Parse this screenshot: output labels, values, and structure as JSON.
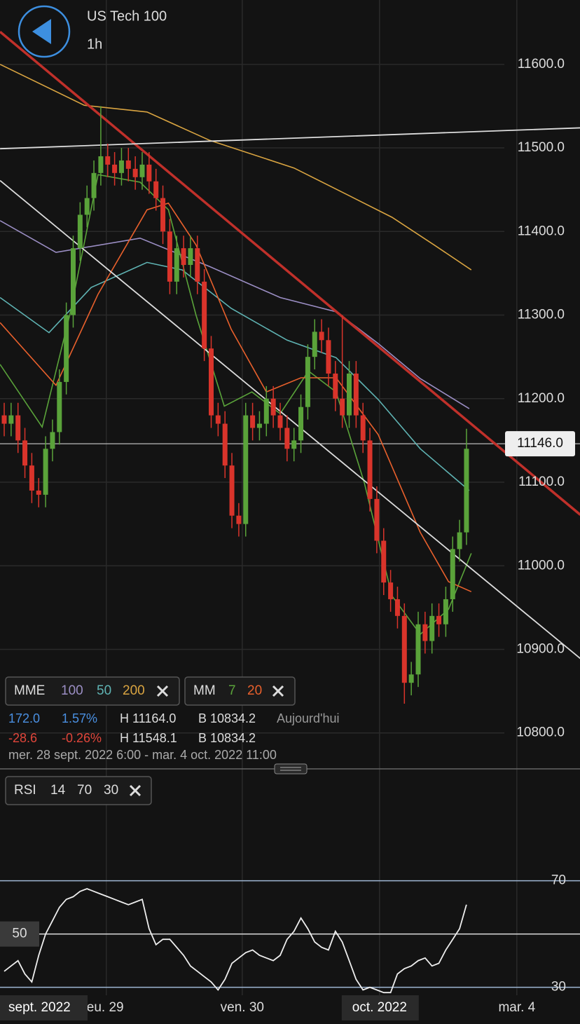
{
  "header": {
    "title": "US Tech 100",
    "interval": "1h"
  },
  "indicator_boxes": [
    {
      "name": "MME",
      "params": [
        {
          "text": "100",
          "color": "#9b8ec4"
        },
        {
          "text": "50",
          "color": "#5fb3b3"
        },
        {
          "text": "200",
          "color": "#d9a441"
        }
      ]
    },
    {
      "name": "MM",
      "params": [
        {
          "text": "7",
          "color": "#5aa33a"
        },
        {
          "text": "20",
          "color": "#e8602c"
        }
      ]
    },
    {
      "name": "RSI",
      "params": [
        {
          "text": "14",
          "color": "#dddddd"
        },
        {
          "text": "70",
          "color": "#dddddd"
        },
        {
          "text": "30",
          "color": "#dddddd"
        }
      ]
    }
  ],
  "info": {
    "rows": [
      {
        "change": "172.0",
        "percent": "1.57%",
        "high": "H 11164.0",
        "low": "B 10834.2",
        "period": "Aujourd'hui",
        "color": "#4a90e2"
      },
      {
        "change": "-28.6",
        "percent": "-0.26%",
        "high": "H 11548.1",
        "low": "B 10834.2",
        "color": "#e0453a"
      }
    ],
    "range": "mer. 28 sept. 2022 6:00 - mar. 4 oct. 2022 11:00"
  },
  "chart_data": [
    {
      "type": "candlestick",
      "up_color": "#5aa33a",
      "down_color": "#d9342b",
      "open": [
        11180,
        11170,
        11180,
        11150,
        11120,
        11090,
        11085,
        11140,
        11160,
        11220,
        11300,
        11380,
        11420,
        11440,
        11470,
        11490,
        11480,
        11470,
        11485,
        11475,
        11465,
        11480,
        11460,
        11440,
        11400,
        11340,
        11380,
        11360,
        11380,
        11340,
        11260,
        11180,
        11170,
        11120,
        11060,
        11050,
        11180,
        11165,
        11170,
        11200,
        11180,
        11165,
        11140,
        11150,
        11190,
        11250,
        11280,
        11270,
        11230,
        11200,
        11180,
        11230,
        11180,
        11150,
        11080,
        11030,
        10980,
        10960,
        10940,
        10860,
        10870,
        10930,
        10910,
        10940,
        10930,
        10960,
        11020,
        11040
      ],
      "high": [
        11195,
        11195,
        11195,
        11165,
        11135,
        11105,
        11155,
        11175,
        11235,
        11315,
        11395,
        11435,
        11455,
        11485,
        11550,
        11505,
        11495,
        11500,
        11500,
        11490,
        11495,
        11495,
        11475,
        11455,
        11415,
        11395,
        11395,
        11395,
        11395,
        11355,
        11275,
        11195,
        11185,
        11135,
        11075,
        11195,
        11195,
        11185,
        11215,
        11215,
        11195,
        11180,
        11165,
        11205,
        11265,
        11295,
        11295,
        11285,
        11245,
        11300,
        11245,
        11245,
        11195,
        11165,
        11095,
        11045,
        10995,
        10975,
        10955,
        10885,
        10945,
        10945,
        10955,
        10955,
        10975,
        11035,
        11055,
        11164
      ],
      "low": [
        11155,
        11155,
        11135,
        11105,
        11075,
        11070,
        11070,
        11125,
        11145,
        11205,
        11285,
        11365,
        11405,
        11425,
        11455,
        11465,
        11455,
        11455,
        11460,
        11450,
        11450,
        11445,
        11425,
        11385,
        11325,
        11325,
        11345,
        11345,
        11325,
        11245,
        11165,
        11155,
        11105,
        11045,
        11035,
        11035,
        11150,
        11150,
        11155,
        11165,
        11150,
        11125,
        11125,
        11135,
        11175,
        11235,
        11255,
        11215,
        11185,
        11165,
        11165,
        11165,
        11135,
        11065,
        11015,
        10965,
        10945,
        10925,
        10835,
        10845,
        10855,
        10895,
        10895,
        10915,
        10915,
        10945,
        11005,
        11025
      ],
      "close": [
        11170,
        11180,
        11150,
        11120,
        11090,
        11085,
        11140,
        11160,
        11220,
        11300,
        11380,
        11420,
        11440,
        11470,
        11490,
        11480,
        11470,
        11485,
        11475,
        11465,
        11480,
        11460,
        11440,
        11400,
        11340,
        11380,
        11360,
        11380,
        11340,
        11260,
        11180,
        11170,
        11120,
        11060,
        11050,
        11180,
        11165,
        11170,
        11200,
        11180,
        11165,
        11140,
        11150,
        11190,
        11250,
        11280,
        11270,
        11230,
        11200,
        11180,
        11230,
        11180,
        11150,
        11080,
        11030,
        10980,
        10960,
        10940,
        10860,
        10870,
        10930,
        10910,
        10940,
        10930,
        10960,
        11020,
        11040,
        11140
      ],
      "ylim": [
        10757,
        11677
      ],
      "yticks": [
        {
          "value": 11600,
          "label": "11600.0"
        },
        {
          "value": 11500,
          "label": "11500.0"
        },
        {
          "value": 11400,
          "label": "11400.0"
        },
        {
          "value": 11300,
          "label": "11300.0"
        },
        {
          "value": 11200,
          "label": "11200.0"
        },
        {
          "value": 11100,
          "label": "11100.0"
        },
        {
          "value": 11000,
          "label": "11000.0"
        },
        {
          "value": 10900,
          "label": "10900.0"
        },
        {
          "value": 10800,
          "label": "10800.0"
        }
      ],
      "xticks": [
        {
          "value": 14.8,
          "label": "eu. 29"
        },
        {
          "value": 34.5,
          "label": "ven. 30"
        },
        {
          "value": 54.4,
          "label": "oct. 2022"
        },
        {
          "value": 74.3,
          "label": "mar. 4"
        }
      ],
      "boxed_xtick": 2,
      "period_label": "sept. 2022",
      "grid": true,
      "last_price": {
        "value": 11146,
        "label": "11146.0"
      },
      "trendlines": [
        {
          "color": "#c0302a",
          "x": [
            -0.6,
            83.5
          ],
          "values": [
            11639,
            11061
          ]
        },
        {
          "color": "#dddddd",
          "x": [
            -0.6,
            83.5
          ],
          "values": [
            11499,
            11524
          ]
        },
        {
          "color": "#dddddd",
          "x": [
            -0.6,
            83.5
          ],
          "values": [
            11461,
            10889
          ]
        }
      ],
      "overlays": [
        {
          "color": "#9b8ec4",
          "x": [
            -0.6,
            7.5,
            19.7,
            29.8,
            40,
            48.1,
            54.2,
            60.3,
            67.4
          ],
          "values": [
            11413,
            11375,
            11392,
            11358,
            11321,
            11304,
            11266,
            11224,
            11188
          ]
        },
        {
          "color": "#5fb3b3",
          "x": [
            -0.6,
            6.5,
            12.6,
            20.7,
            25.8,
            32.9,
            41,
            48.1,
            54.2,
            60.3,
            67.4
          ],
          "values": [
            11321,
            11279,
            11333,
            11363,
            11354,
            11308,
            11270,
            11249,
            11199,
            11140,
            11090
          ]
        },
        {
          "color": "#d9a441",
          "x": [
            -0.6,
            11.6,
            20.7,
            29.8,
            42,
            50.2,
            56.2,
            62.3,
            67.7
          ],
          "values": [
            11600,
            11551,
            11543,
            11509,
            11476,
            11442,
            11417,
            11384,
            11354
          ]
        },
        {
          "color": "#5aa33a",
          "x": [
            -0.6,
            5.5,
            9.5,
            13.6,
            19.7,
            23.8,
            27.8,
            31.9,
            35.9,
            40,
            44.1,
            48.1,
            52.2,
            56.2,
            60.3,
            64.4,
            67.7
          ],
          "values": [
            11241,
            11166,
            11300,
            11468,
            11459,
            11426,
            11300,
            11191,
            11208,
            11182,
            11233,
            11208,
            11099,
            10964,
            10918,
            10948,
            11015
          ]
        },
        {
          "color": "#e8602c",
          "x": [
            -0.6,
            7.5,
            13.6,
            20.7,
            23.8,
            27.8,
            32.9,
            38,
            43,
            48.1,
            54.2,
            60.3,
            64.4,
            67.7
          ],
          "values": [
            11291,
            11216,
            11325,
            11426,
            11434,
            11384,
            11283,
            11208,
            11225,
            11225,
            11157,
            11040,
            10981,
            10969
          ]
        }
      ]
    },
    {
      "type": "line",
      "color": "#eeeeee",
      "values": [
        36,
        38,
        40,
        35,
        32,
        42,
        50,
        55,
        60,
        63,
        64,
        66,
        67,
        66,
        65,
        64,
        63,
        62,
        61,
        62,
        63,
        52,
        46,
        48,
        48,
        45,
        42,
        38,
        36,
        34,
        32,
        29,
        33,
        39,
        41,
        43,
        44,
        42,
        41,
        40,
        42,
        48,
        51,
        56,
        52,
        47,
        45,
        44,
        51,
        47,
        40,
        33,
        29,
        30,
        29,
        28,
        28,
        35,
        37,
        38,
        40,
        41,
        38,
        39,
        44,
        48,
        52,
        61
      ],
      "ylim": [
        27,
        112
      ],
      "yticks": [
        70,
        50,
        30
      ]
    }
  ]
}
